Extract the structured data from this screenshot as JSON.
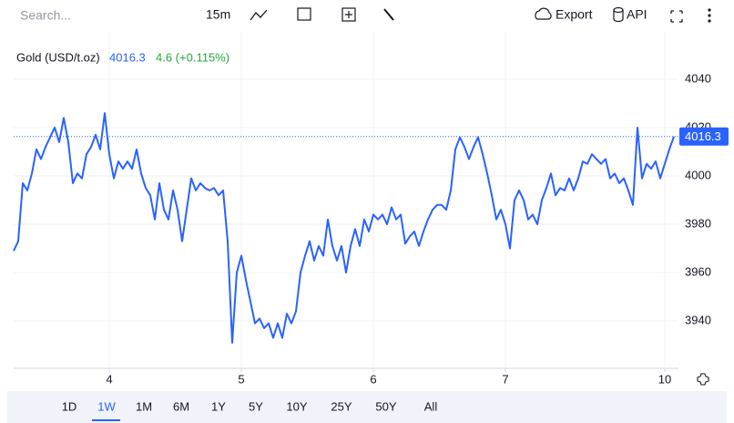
{
  "ui": {
    "search": "Search...",
    "interval": "15m",
    "export": "Export",
    "api": "API",
    "ranges": [
      "1D",
      "1W",
      "1M",
      "6M",
      "1Y",
      "5Y",
      "10Y",
      "25Y",
      "50Y",
      "All"
    ],
    "selected_range": "1W"
  },
  "chart_data": {
    "type": "line",
    "title": "Gold (USD/t.oz)",
    "last_price": 4016.3,
    "change": "4.6 (+0.115%)",
    "series": [
      {
        "name": "Gold (USD/t.oz)",
        "color": "#2962ff",
        "values": [
          3969,
          3973,
          3997,
          3994,
          4001,
          4011,
          4007,
          4012,
          4016,
          4020,
          4014,
          4024,
          4014,
          3997,
          4001,
          3999,
          4009,
          4012,
          4017,
          4011,
          4026,
          4009,
          3999,
          4006,
          4003,
          4006,
          4003,
          4011,
          4001,
          3995,
          3992,
          3982,
          3997,
          3986,
          3982,
          3994,
          3986,
          3973,
          3986,
          3999,
          3994,
          3997,
          3995,
          3994,
          3995,
          3992,
          3994,
          3973,
          3931,
          3960,
          3967,
          3957,
          3948,
          3939,
          3941,
          3937,
          3939,
          3933,
          3939,
          3933,
          3943,
          3939,
          3944,
          3960,
          3967,
          3973,
          3965,
          3971,
          3967,
          3982,
          3971,
          3965,
          3971,
          3960,
          3971,
          3978,
          3971,
          3982,
          3977,
          3984,
          3982,
          3984,
          3980,
          3987,
          3982,
          3984,
          3972,
          3975,
          3977,
          3971,
          3977,
          3982,
          3986,
          3988,
          3988,
          3986,
          3994,
          4011,
          4016,
          4012,
          4007,
          4012,
          4016,
          4009,
          4001,
          3992,
          3982,
          3986,
          3980,
          3970,
          3990,
          3994,
          3990,
          3982,
          3984,
          3980,
          3990,
          3995,
          4001,
          3992,
          3995,
          3994,
          3999,
          3994,
          3999,
          4006,
          4005,
          4009,
          4007,
          4005,
          4007,
          3999,
          4001,
          3997,
          3999,
          3994,
          3988,
          4020,
          3999,
          4005,
          4003,
          4006,
          3999,
          4005,
          4011,
          4016.3
        ]
      }
    ],
    "xlim": [
      0,
      144
    ],
    "xticks": [
      {
        "value": 21,
        "label": "4"
      },
      {
        "value": 50,
        "label": "5"
      },
      {
        "value": 79,
        "label": "6"
      },
      {
        "value": 108,
        "label": "7"
      },
      {
        "value": 143,
        "label": "10"
      }
    ],
    "ylim": [
      3920.4,
      4059.6
    ],
    "yticks": [
      3940,
      3960,
      3980,
      4000,
      4020,
      4040
    ],
    "grid": true
  }
}
